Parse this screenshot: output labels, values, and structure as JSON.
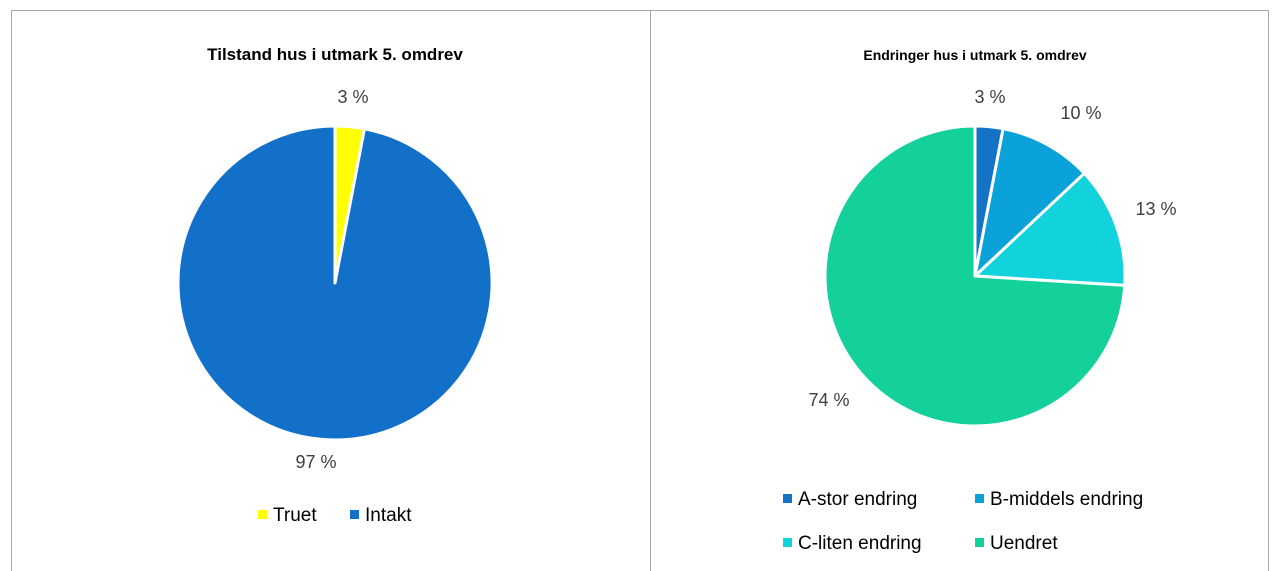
{
  "chart_data": [
    {
      "type": "pie",
      "title": "Tilstand hus i utmark 5. omdrev",
      "categories": [
        "Truet",
        "Intakt"
      ],
      "values": [
        3,
        97
      ],
      "data_labels": [
        "3 %",
        "97 %"
      ],
      "colors": [
        "#ffff00",
        "#1270c8"
      ],
      "legend": "bottom"
    },
    {
      "type": "pie",
      "title": "Endringer hus i utmark 5. omdrev",
      "categories": [
        "A-stor endring",
        "B-middels endring",
        "C-liten endring",
        "Uendret"
      ],
      "values": [
        3,
        10,
        13,
        74
      ],
      "data_labels": [
        "3 %",
        "10 %",
        "13 %",
        "74 %"
      ],
      "colors": [
        "#1573c6",
        "#0aa2d8",
        "#12d2dc",
        "#14d09a"
      ],
      "legend": "bottom"
    }
  ]
}
